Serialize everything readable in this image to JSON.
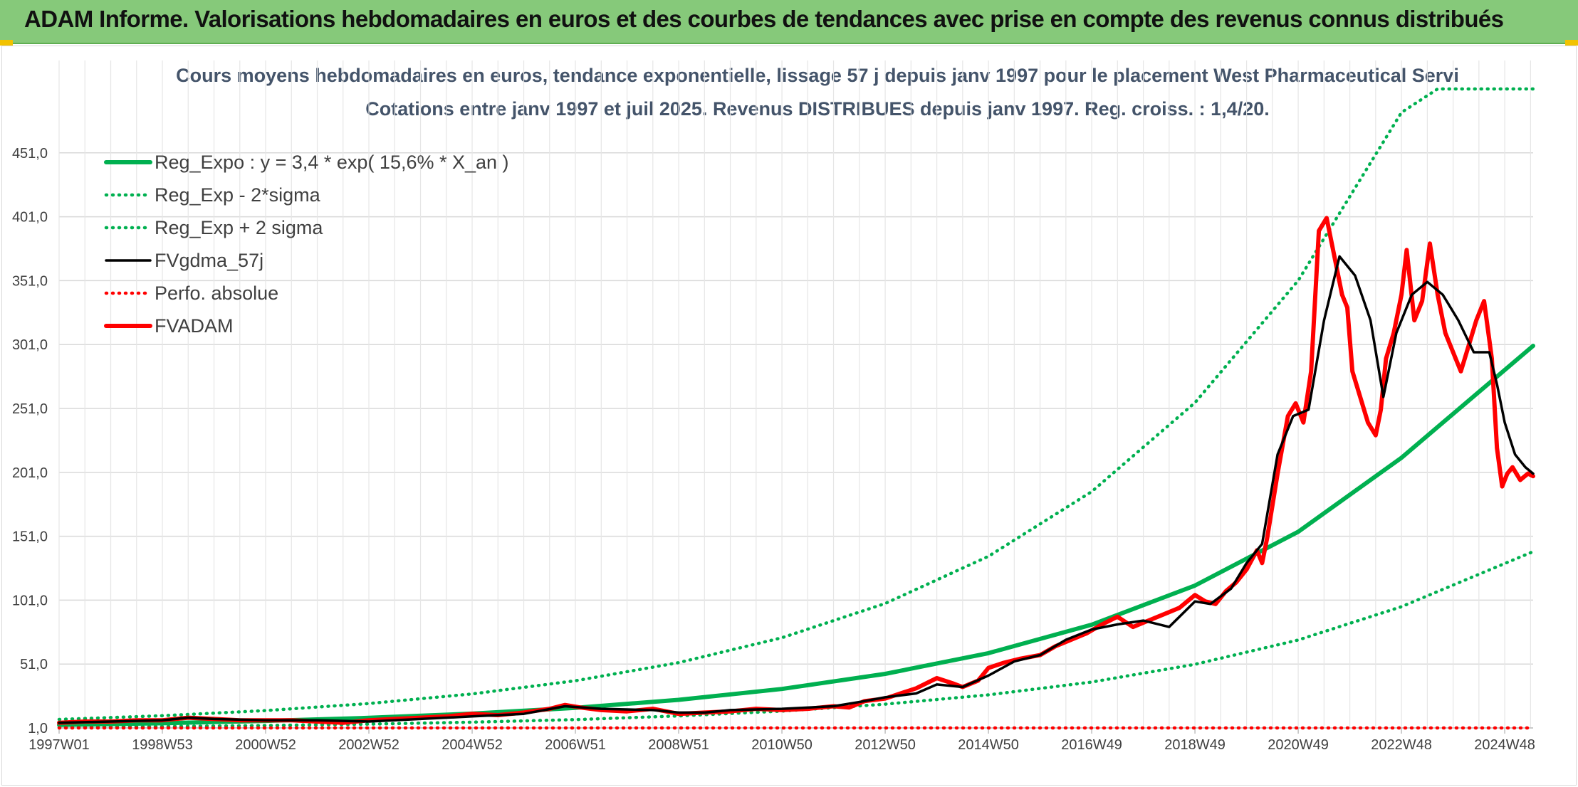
{
  "banner": {
    "title": "ADAM Informe. Valorisations hebdomadaires en euros et des courbes de tendances avec prise en compte des revenus connus distribués"
  },
  "colors": {
    "banner_bg": "#86c97a",
    "trend_green": "#00b050",
    "smooth_black": "#000000",
    "price_red": "#ff0000",
    "title_text": "#44546a",
    "grid": "#d9d9d9"
  },
  "chart_data": {
    "type": "line",
    "title": "Cours moyens hebdomadaires en euros, tendance exponentielle, lissage 57 j depuis janv 1997 pour le placement West Pharmaceutical Servi",
    "subtitle": "Cotations entre janv 1997 et juil 2025. Revenus DISTRIBUES depuis janv 1997. Reg. croiss. : 1,4/20.",
    "x_range": [
      1997.0,
      2025.55
    ],
    "ylim": [
      1.0,
      501.0
    ],
    "y_ticks": [
      "1,0",
      "51,0",
      "101,0",
      "151,0",
      "201,0",
      "251,0",
      "301,0",
      "351,0",
      "401,0",
      "451,0"
    ],
    "x_ticks": [
      {
        "label": "1997W01",
        "x": 1997.0
      },
      {
        "label": "1998W53",
        "x": 1999.0
      },
      {
        "label": "2000W52",
        "x": 2001.0
      },
      {
        "label": "2002W52",
        "x": 2003.0
      },
      {
        "label": "2004W52",
        "x": 2005.0
      },
      {
        "label": "2006W51",
        "x": 2007.0
      },
      {
        "label": "2008W51",
        "x": 2009.0
      },
      {
        "label": "2010W50",
        "x": 2011.0
      },
      {
        "label": "2012W50",
        "x": 2013.0
      },
      {
        "label": "2014W50",
        "x": 2015.0
      },
      {
        "label": "2016W49",
        "x": 2017.0
      },
      {
        "label": "2018W49",
        "x": 2019.0
      },
      {
        "label": "2020W49",
        "x": 2021.0
      },
      {
        "label": "2022W48",
        "x": 2023.0
      },
      {
        "label": "2024W48",
        "x": 2025.0
      }
    ],
    "legend_position": "top-left",
    "grid": true,
    "series": [
      {
        "name": "Reg_Expo : y = 3,4 * exp( 15,6% *  X_an )",
        "style": "solid-thick",
        "color": "#00b050",
        "x": [
          1997,
          1999,
          2001,
          2003,
          2005,
          2007,
          2009,
          2011,
          2013,
          2015,
          2017,
          2019,
          2021,
          2023,
          2025.55
        ],
        "y": [
          3.4,
          4.7,
          6.5,
          8.9,
          12.2,
          16.7,
          23.0,
          31.5,
          43.3,
          59.5,
          81.8,
          112.4,
          154.5,
          212.4,
          300.0
        ]
      },
      {
        "name": "Reg_Exp - 2*sigma",
        "style": "dotted",
        "color": "#00b050",
        "x": [
          1997,
          1999,
          2001,
          2003,
          2005,
          2007,
          2009,
          2011,
          2013,
          2015,
          2017,
          2019,
          2021,
          2023,
          2025.55
        ],
        "y": [
          1.5,
          2.1,
          2.9,
          4.0,
          5.5,
          7.5,
          10.4,
          14.2,
          19.6,
          26.9,
          36.9,
          50.8,
          69.8,
          95.9,
          139.0
        ]
      },
      {
        "name": "Reg_Exp + 2 sigma",
        "style": "dotted",
        "color": "#00b050",
        "x": [
          1997,
          1999,
          2001,
          2003,
          2005,
          2007,
          2009,
          2011,
          2013,
          2015,
          2017,
          2019,
          2021,
          2023,
          2023.7,
          2025.55
        ],
        "y": [
          7.7,
          10.6,
          14.6,
          20.1,
          27.6,
          37.9,
          52.1,
          71.6,
          98.4,
          135.3,
          185.9,
          255.5,
          351.1,
          482.6,
          501.0,
          501.0
        ]
      },
      {
        "name": "FVgdma_57j",
        "style": "solid",
        "color": "#000000",
        "x": [
          1997.0,
          1998.0,
          1999.0,
          1999.5,
          2000.0,
          2001.0,
          2002.0,
          2003.0,
          2004.0,
          2005.0,
          2006.0,
          2006.8,
          2007.5,
          2008.5,
          2009.0,
          2009.5,
          2010.0,
          2011.0,
          2012.0,
          2012.6,
          2013.0,
          2013.6,
          2014.0,
          2014.5,
          2015.0,
          2015.5,
          2016.0,
          2016.5,
          2017.0,
          2017.5,
          2018.0,
          2018.5,
          2019.0,
          2019.3,
          2019.7,
          2020.0,
          2020.3,
          2020.6,
          2020.9,
          2021.2,
          2021.5,
          2021.8,
          2022.1,
          2022.4,
          2022.65,
          2022.9,
          2023.2,
          2023.5,
          2023.8,
          2024.1,
          2024.4,
          2024.7,
          2024.85,
          2025.0,
          2025.2,
          2025.4,
          2025.55
        ],
        "y": [
          5,
          6,
          7,
          9,
          8,
          7,
          7,
          6,
          8,
          10,
          12,
          18,
          16,
          15,
          13,
          13,
          15,
          16,
          18,
          22,
          25,
          28,
          35,
          33,
          42,
          53,
          58,
          70,
          78,
          82,
          85,
          80,
          100,
          98,
          110,
          130,
          145,
          215,
          245,
          250,
          320,
          370,
          355,
          320,
          260,
          310,
          340,
          350,
          340,
          320,
          295,
          295,
          270,
          240,
          215,
          205,
          200
        ]
      },
      {
        "name": "Perfo. absolue",
        "style": "dotted",
        "color": "#ff0000",
        "x": [
          1997.0,
          2025.55
        ],
        "y": [
          1.0,
          1.0
        ]
      },
      {
        "name": "FVADAM",
        "style": "solid-thick",
        "color": "#ff0000",
        "x": [
          1997.0,
          1997.5,
          1998.0,
          1998.5,
          1999.0,
          1999.5,
          2000.0,
          2000.5,
          2001.0,
          2001.5,
          2002.0,
          2002.5,
          2003.0,
          2003.5,
          2004.0,
          2004.5,
          2005.0,
          2005.5,
          2006.0,
          2006.5,
          2006.8,
          2007.1,
          2007.5,
          2008.0,
          2008.5,
          2009.0,
          2009.5,
          2010.0,
          2010.5,
          2011.0,
          2011.5,
          2012.0,
          2012.3,
          2012.6,
          2013.0,
          2013.3,
          2013.6,
          2014.0,
          2014.3,
          2014.5,
          2014.8,
          2015.0,
          2015.3,
          2015.6,
          2016.0,
          2016.3,
          2016.6,
          2016.9,
          2017.2,
          2017.5,
          2017.8,
          2018.1,
          2018.4,
          2018.7,
          2019.0,
          2019.2,
          2019.4,
          2019.6,
          2019.8,
          2020.0,
          2020.2,
          2020.3,
          2020.4,
          2020.6,
          2020.8,
          2020.95,
          2021.1,
          2021.25,
          2021.4,
          2021.55,
          2021.7,
          2021.85,
          2021.95,
          2022.05,
          2022.2,
          2022.35,
          2022.5,
          2022.6,
          2022.7,
          2022.85,
          2023.0,
          2023.1,
          2023.25,
          2023.4,
          2023.55,
          2023.7,
          2023.85,
          2024.0,
          2024.15,
          2024.3,
          2024.45,
          2024.6,
          2024.75,
          2024.85,
          2024.95,
          2025.05,
          2025.15,
          2025.3,
          2025.45,
          2025.55
        ],
        "y": [
          5,
          6,
          6,
          7,
          7,
          9,
          8,
          7,
          7,
          7,
          6,
          5,
          7,
          8,
          9,
          10,
          12,
          11,
          13,
          16,
          19,
          17,
          15,
          14,
          16,
          12,
          13,
          14,
          16,
          15,
          16,
          18,
          17,
          22,
          24,
          28,
          32,
          40,
          36,
          33,
          38,
          48,
          52,
          55,
          58,
          65,
          70,
          75,
          82,
          88,
          80,
          85,
          90,
          95,
          105,
          100,
          98,
          108,
          115,
          125,
          140,
          130,
          150,
          200,
          245,
          255,
          240,
          280,
          390,
          400,
          370,
          340,
          330,
          280,
          260,
          240,
          230,
          250,
          290,
          310,
          340,
          375,
          320,
          335,
          380,
          340,
          310,
          295,
          280,
          300,
          320,
          335,
          290,
          220,
          190,
          200,
          205,
          195,
          200,
          198
        ]
      }
    ]
  }
}
